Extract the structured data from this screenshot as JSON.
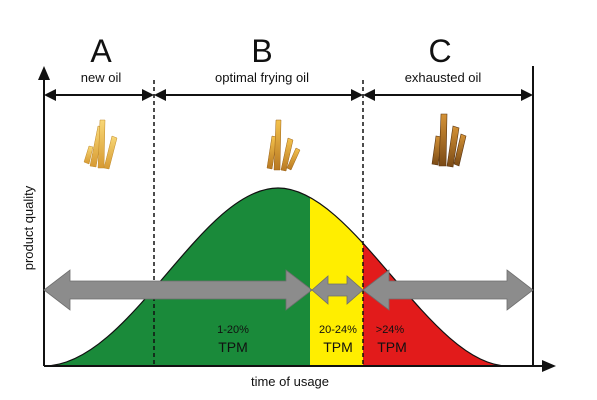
{
  "phases": [
    {
      "letter": "A",
      "label": "new oil"
    },
    {
      "letter": "B",
      "label": "optimal frying oil"
    },
    {
      "letter": "C",
      "label": "exhausted oil"
    }
  ],
  "zones": [
    {
      "range": "1-20%",
      "unit": "TPM",
      "color": "#1a8a3a"
    },
    {
      "range": "20-24%",
      "unit": "TPM",
      "color": "#ffee00"
    },
    {
      "range": ">24%",
      "unit": "TPM",
      "color": "#e21b1b"
    }
  ],
  "axes": {
    "x_label": "time of usage",
    "y_label": "product quality"
  },
  "colors": {
    "arrow_gray": "#8c8c8c",
    "fry_light": "#f2c24a",
    "fry_dark": "#b8752a",
    "line": "#111111"
  },
  "icons": [
    "fries-light-icon",
    "fries-medium-icon",
    "fries-dark-icon"
  ]
}
